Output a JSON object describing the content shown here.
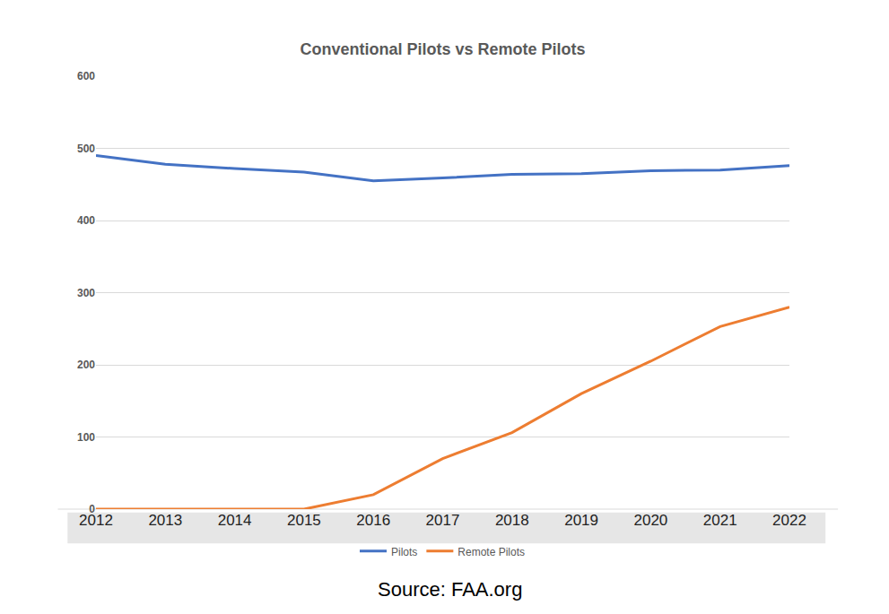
{
  "chart_data": {
    "type": "line",
    "title": "Conventional Pilots vs Remote Pilots",
    "categories": [
      "2012",
      "2013",
      "2014",
      "2015",
      "2016",
      "2017",
      "2018",
      "2019",
      "2020",
      "2021",
      "2022"
    ],
    "series": [
      {
        "name": "Pilots",
        "color": "#4472c4",
        "values": [
          490,
          478,
          472,
          467,
          455,
          459,
          464,
          465,
          469,
          470,
          476
        ]
      },
      {
        "name": "Remote Pilots",
        "color": "#ed7d31",
        "values": [
          0,
          0,
          0,
          0,
          20,
          70,
          106,
          160,
          205,
          253,
          280
        ]
      }
    ],
    "ylim": [
      0,
      600
    ],
    "yticks": [
      0,
      100,
      200,
      300,
      400,
      500,
      600
    ],
    "grid": true,
    "legend": "bottom",
    "annotations": [
      "Source: FAA.org"
    ]
  }
}
